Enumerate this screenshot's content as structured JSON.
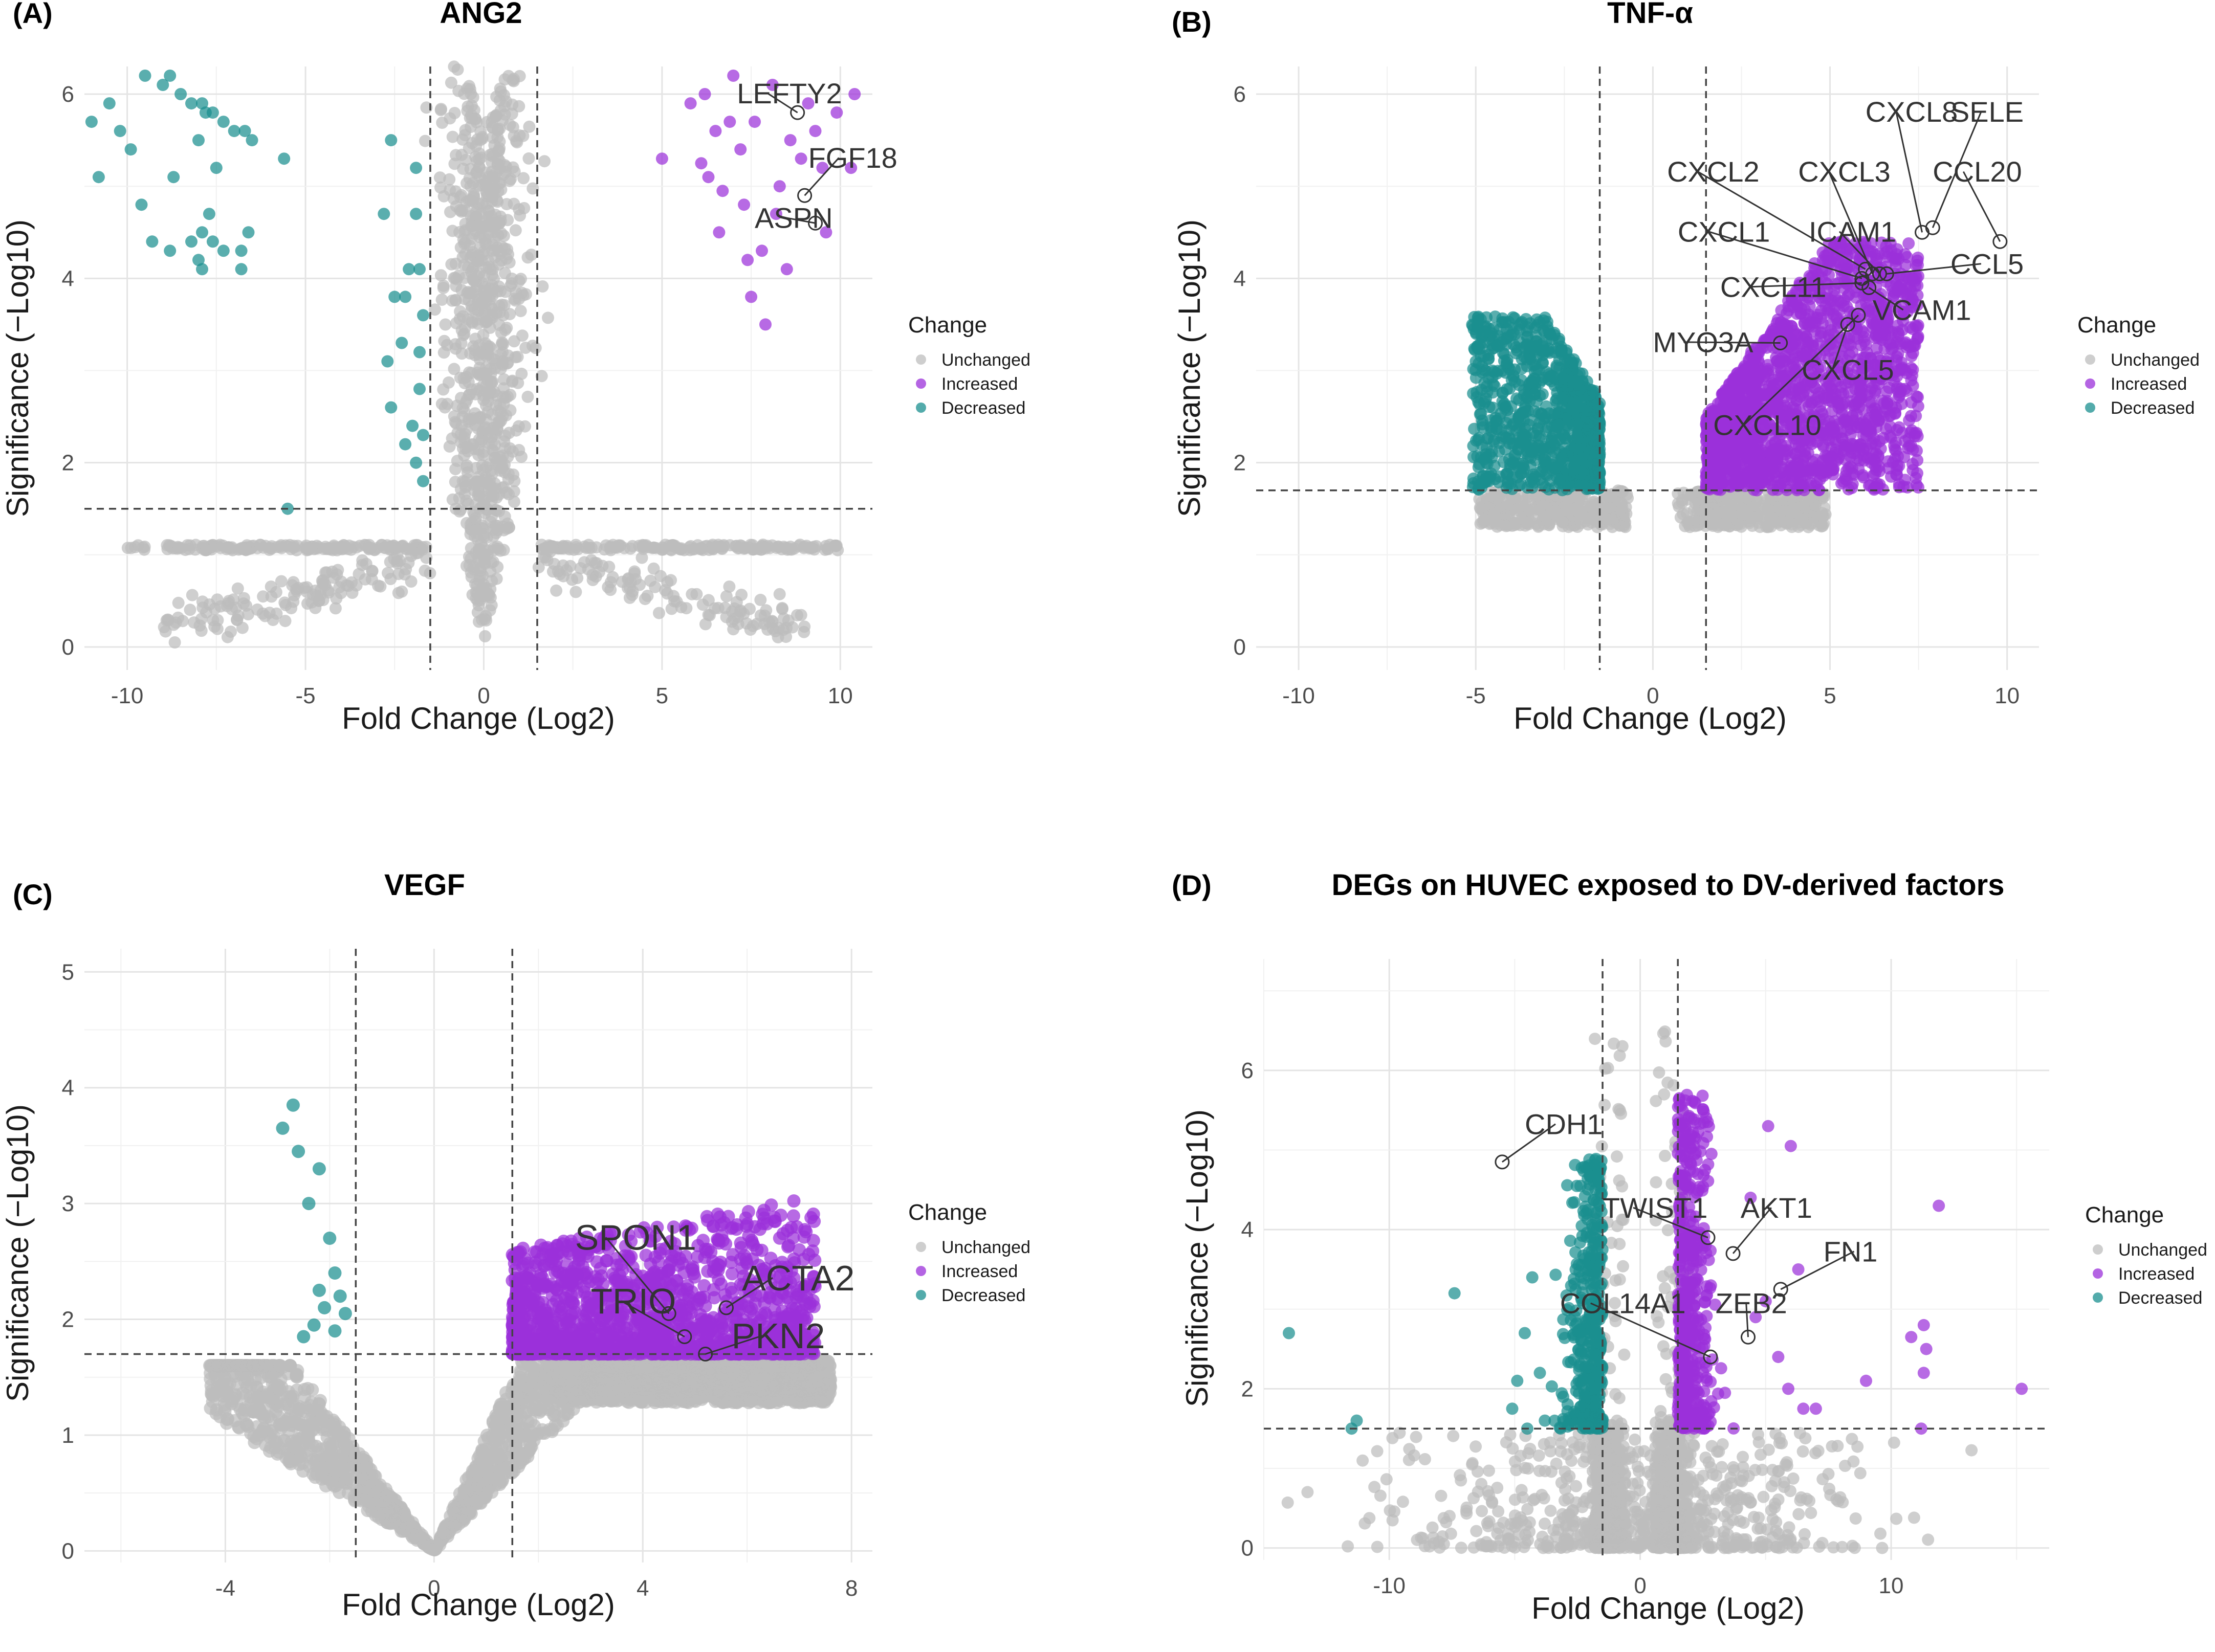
{
  "figure": {
    "legend_title": "Change",
    "legend_items": [
      {
        "label": "Unchanged",
        "color": "#bdbdbd"
      },
      {
        "label": "Increased",
        "color": "#9b30d9"
      },
      {
        "label": "Decreased",
        "color": "#1a8f8f"
      }
    ]
  },
  "chart_data": [
    {
      "panel": "(A)",
      "type": "scatter",
      "title": "ANG2",
      "xlabel": "Fold Change (Log2)",
      "ylabel": "Significance (−Log10)",
      "xlim": [
        -11.2,
        10.9
      ],
      "ylim": [
        -0.25,
        6.3
      ],
      "xticks": [
        -10,
        -5,
        0,
        5,
        10
      ],
      "yticks": [
        0,
        2,
        4,
        6
      ],
      "fc_threshold": 1.5,
      "sig_threshold": 1.5,
      "shape": "volcano-wide",
      "grid": true,
      "legend_position": "right",
      "labels": [
        {
          "text": "LEFTY2",
          "x": 8.8,
          "y": 5.8,
          "tx": 7.1,
          "ty": 5.9
        },
        {
          "text": "FGF18",
          "x": 9.0,
          "y": 4.9,
          "tx": 9.1,
          "ty": 5.2
        },
        {
          "text": "ASPN",
          "x": 9.3,
          "y": 4.6,
          "tx": 7.6,
          "ty": 4.55
        }
      ],
      "series": [
        {
          "name": "Unchanged",
          "color": "#bdbdbd",
          "count": 1400
        },
        {
          "name": "Increased",
          "color": "#9b30d9",
          "count": 80,
          "points": [
            [
              5.8,
              5.9
            ],
            [
              6.2,
              6.0
            ],
            [
              6.5,
              5.6
            ],
            [
              6.3,
              5.1
            ],
            [
              6.7,
              4.95
            ],
            [
              6.1,
              5.25
            ],
            [
              7.2,
              5.4
            ],
            [
              7.6,
              5.7
            ],
            [
              7.3,
              4.8
            ],
            [
              7.8,
              4.3
            ],
            [
              7.5,
              3.8
            ],
            [
              7.9,
              3.5
            ],
            [
              8.3,
              5.0
            ],
            [
              8.6,
              5.5
            ],
            [
              8.9,
              5.3
            ],
            [
              9.3,
              5.6
            ],
            [
              9.5,
              5.2
            ],
            [
              9.9,
              5.8
            ],
            [
              9.6,
              4.5
            ],
            [
              10.3,
              5.2
            ],
            [
              5.0,
              5.3
            ],
            [
              7.0,
              6.2
            ],
            [
              8.2,
              4.7
            ],
            [
              10.4,
              6.0
            ],
            [
              8.5,
              4.1
            ],
            [
              6.9,
              5.7
            ],
            [
              8.1,
              6.1
            ],
            [
              9.1,
              5.9
            ],
            [
              7.4,
              4.2
            ],
            [
              6.6,
              4.5
            ]
          ]
        },
        {
          "name": "Decreased",
          "color": "#1a8f8f",
          "count": 60,
          "points": [
            [
              -10.5,
              5.9
            ],
            [
              -11.0,
              5.7
            ],
            [
              -10.2,
              5.6
            ],
            [
              -10.8,
              5.1
            ],
            [
              -9.9,
              5.4
            ],
            [
              -9.5,
              6.2
            ],
            [
              -9.0,
              6.1
            ],
            [
              -8.8,
              6.2
            ],
            [
              -8.5,
              6.0
            ],
            [
              -8.2,
              5.9
            ],
            [
              -7.9,
              5.9
            ],
            [
              -7.6,
              5.8
            ],
            [
              -7.3,
              5.7
            ],
            [
              -7.0,
              5.6
            ],
            [
              -6.7,
              5.6
            ],
            [
              -6.5,
              5.5
            ],
            [
              -7.8,
              5.8
            ],
            [
              -8.0,
              5.5
            ],
            [
              -8.7,
              5.1
            ],
            [
              -7.5,
              5.2
            ],
            [
              -9.6,
              4.8
            ],
            [
              -9.3,
              4.4
            ],
            [
              -8.8,
              4.3
            ],
            [
              -8.2,
              4.4
            ],
            [
              -7.9,
              4.5
            ],
            [
              -7.6,
              4.4
            ],
            [
              -7.3,
              4.3
            ],
            [
              -7.7,
              4.7
            ],
            [
              -6.8,
              4.3
            ],
            [
              -6.6,
              4.5
            ],
            [
              -6.8,
              4.1
            ],
            [
              -8.0,
              4.2
            ],
            [
              -7.9,
              4.1
            ],
            [
              -5.6,
              5.3
            ],
            [
              -5.5,
              1.5
            ],
            [
              -2.6,
              5.5
            ],
            [
              -2.8,
              4.7
            ],
            [
              -2.5,
              3.8
            ],
            [
              -2.7,
              3.1
            ],
            [
              -2.6,
              2.6
            ],
            [
              -1.9,
              5.2
            ],
            [
              -1.9,
              4.7
            ],
            [
              -1.8,
              4.1
            ],
            [
              -2.2,
              3.8
            ],
            [
              -1.8,
              3.2
            ],
            [
              -2.3,
              3.3
            ],
            [
              -1.8,
              2.8
            ],
            [
              -2.0,
              2.4
            ],
            [
              -1.9,
              2.0
            ],
            [
              -1.7,
              1.8
            ],
            [
              -2.2,
              2.2
            ],
            [
              -1.7,
              3.6
            ],
            [
              -2.1,
              4.1
            ],
            [
              -1.7,
              2.3
            ]
          ]
        }
      ]
    },
    {
      "panel": "(B)",
      "type": "scatter",
      "title": "TNF-α",
      "xlabel": "Fold Change (Log2)",
      "ylabel": "Significance (−Log10)",
      "xlim": [
        -11.2,
        10.9
      ],
      "ylim": [
        -0.25,
        6.3
      ],
      "xticks": [
        -10,
        -5,
        0,
        5,
        10
      ],
      "yticks": [
        0,
        2,
        4,
        6
      ],
      "fc_threshold": 1.5,
      "sig_threshold": 1.7,
      "shape": "volcano-wings",
      "grid": true,
      "legend_position": "right",
      "labels": [
        {
          "text": "CXCL8",
          "x": 7.6,
          "y": 4.5,
          "tx": 6.0,
          "ty": 5.7
        },
        {
          "text": "SELE",
          "x": 7.9,
          "y": 4.55,
          "tx": 8.4,
          "ty": 5.7
        },
        {
          "text": "CXCL2",
          "x": 6.0,
          "y": 4.1,
          "tx": 0.4,
          "ty": 5.05
        },
        {
          "text": "CXCL3",
          "x": 6.2,
          "y": 4.05,
          "tx": 4.1,
          "ty": 5.05
        },
        {
          "text": "CCL20",
          "x": 9.8,
          "y": 4.4,
          "tx": 7.9,
          "ty": 5.05
        },
        {
          "text": "CXCL1",
          "x": 5.9,
          "y": 4.0,
          "tx": 0.7,
          "ty": 4.4
        },
        {
          "text": "ICAM1",
          "x": 6.4,
          "y": 4.05,
          "tx": 4.4,
          "ty": 4.4
        },
        {
          "text": "CCL5",
          "x": 6.6,
          "y": 4.05,
          "tx": 8.4,
          "ty": 4.05
        },
        {
          "text": "CXCL11",
          "x": 5.9,
          "y": 3.95,
          "tx": 1.9,
          "ty": 3.8
        },
        {
          "text": "VCAM1",
          "x": 6.1,
          "y": 3.9,
          "tx": 6.2,
          "ty": 3.55
        },
        {
          "text": "MYO3A",
          "x": 3.6,
          "y": 3.3,
          "tx": 0.0,
          "ty": 3.2
        },
        {
          "text": "CXCL5",
          "x": 5.5,
          "y": 3.5,
          "tx": 4.2,
          "ty": 2.9
        },
        {
          "text": "CXCL10",
          "x": 5.8,
          "y": 3.6,
          "tx": 1.7,
          "ty": 2.3
        }
      ],
      "series": [
        {
          "name": "Unchanged",
          "color": "#bdbdbd",
          "count": 700
        },
        {
          "name": "Increased",
          "color": "#9b30d9",
          "count": 1800
        },
        {
          "name": "Decreased",
          "color": "#1a8f8f",
          "count": 900
        }
      ]
    },
    {
      "panel": "(C)",
      "type": "scatter",
      "title": "VEGF",
      "xlabel": "Fold Change (Log2)",
      "ylabel": "Significance (−Log10)",
      "xlim": [
        -6.7,
        8.4
      ],
      "ylim": [
        -0.1,
        5.2
      ],
      "xticks": [
        -4,
        0,
        4,
        8
      ],
      "yticks": [
        0,
        1,
        2,
        3,
        4,
        5
      ],
      "fc_threshold": 1.5,
      "sig_threshold": 1.7,
      "shape": "volcano-v",
      "grid": true,
      "legend_position": "right",
      "labels": [
        {
          "text": "SPON1",
          "x": 4.5,
          "y": 2.05,
          "tx": 2.7,
          "ty": 2.6
        },
        {
          "text": "ACTA2",
          "x": 5.6,
          "y": 2.1,
          "tx": 5.9,
          "ty": 2.25
        },
        {
          "text": "TRIO",
          "x": 4.8,
          "y": 1.85,
          "tx": 3.0,
          "ty": 2.05
        },
        {
          "text": "PKN2",
          "x": 5.2,
          "y": 1.7,
          "tx": 5.7,
          "ty": 1.75
        }
      ],
      "series": [
        {
          "name": "Unchanged",
          "color": "#bdbdbd",
          "count": 2600
        },
        {
          "name": "Increased",
          "color": "#9b30d9",
          "count": 1500
        },
        {
          "name": "Decreased",
          "color": "#1a8f8f",
          "count": 14,
          "points": [
            [
              -2.9,
              3.65
            ],
            [
              -2.7,
              3.85
            ],
            [
              -2.6,
              3.45
            ],
            [
              -2.4,
              3.0
            ],
            [
              -2.2,
              3.3
            ],
            [
              -2.0,
              2.7
            ],
            [
              -1.9,
              2.4
            ],
            [
              -2.1,
              2.1
            ],
            [
              -2.3,
              1.95
            ],
            [
              -1.8,
              2.2
            ],
            [
              -1.7,
              2.05
            ],
            [
              -2.5,
              1.85
            ],
            [
              -1.9,
              1.9
            ],
            [
              -2.2,
              2.25
            ]
          ]
        }
      ]
    },
    {
      "panel": "(D)",
      "type": "scatter",
      "title": "DEGs on HUVEC exposed to DV-derived factors",
      "xlabel": "Fold Change (Log2)",
      "ylabel": "Significance (−Log10)",
      "xlim": [
        -15.0,
        16.3
      ],
      "ylim": [
        -0.15,
        7.4
      ],
      "xticks": [
        -10,
        0,
        10
      ],
      "yticks": [
        0,
        2,
        4,
        6
      ],
      "fc_threshold": 1.5,
      "sig_threshold": 1.5,
      "shape": "volcano-narrow",
      "grid": true,
      "legend_position": "right",
      "labels": [
        {
          "text": "CDH1",
          "x": -5.5,
          "y": 4.85,
          "tx": -4.6,
          "ty": 5.2
        },
        {
          "text": "TWIST1",
          "x": 2.7,
          "y": 3.9,
          "tx": -1.5,
          "ty": 4.15
        },
        {
          "text": "AKT1",
          "x": 3.7,
          "y": 3.7,
          "tx": 4.0,
          "ty": 4.15
        },
        {
          "text": "FN1",
          "x": 5.6,
          "y": 3.25,
          "tx": 7.3,
          "ty": 3.6
        },
        {
          "text": "COL14A1",
          "x": 2.8,
          "y": 2.4,
          "tx": -3.2,
          "ty": 2.95
        },
        {
          "text": "ZEB2",
          "x": 4.3,
          "y": 2.65,
          "tx": 3.0,
          "ty": 2.95
        }
      ],
      "series": [
        {
          "name": "Unchanged",
          "color": "#bdbdbd",
          "count": 1500
        },
        {
          "name": "Increased",
          "color": "#9b30d9",
          "count": 500,
          "points": [
            [
              11.9,
              4.3
            ],
            [
              11.3,
              2.8
            ],
            [
              11.4,
              2.5
            ],
            [
              11.3,
              2.2
            ],
            [
              11.2,
              1.5
            ],
            [
              15.2,
              2.0
            ],
            [
              10.8,
              2.65
            ],
            [
              9.0,
              2.1
            ],
            [
              7.0,
              1.75
            ],
            [
              6.5,
              1.75
            ],
            [
              6.0,
              5.05
            ],
            [
              5.1,
              5.3
            ],
            [
              4.4,
              4.4
            ],
            [
              6.3,
              3.5
            ],
            [
              5.0,
              3.1
            ],
            [
              4.6,
              2.9
            ],
            [
              5.5,
              2.4
            ],
            [
              5.9,
              2.0
            ]
          ]
        },
        {
          "name": "Decreased",
          "color": "#1a8f8f",
          "count": 400,
          "points": [
            [
              -14.0,
              2.7
            ],
            [
              -11.3,
              1.6
            ],
            [
              -11.5,
              1.5
            ],
            [
              -7.4,
              3.2
            ],
            [
              -4.6,
              2.7
            ],
            [
              -4.3,
              3.4
            ],
            [
              -4.9,
              2.1
            ],
            [
              -5.1,
              1.75
            ],
            [
              -4.0,
              2.2
            ],
            [
              -4.5,
              1.5
            ],
            [
              -3.8,
              1.6
            ]
          ]
        }
      ]
    }
  ]
}
